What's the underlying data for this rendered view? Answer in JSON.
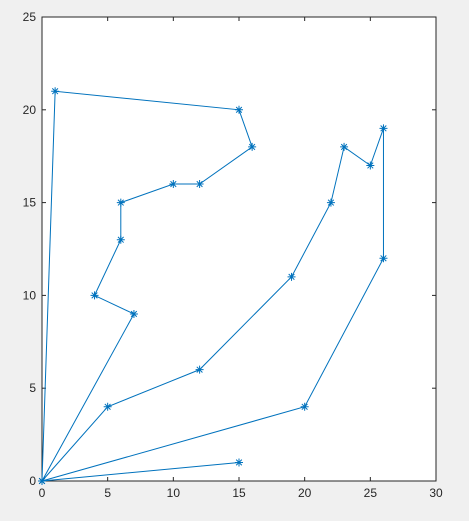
{
  "chart_data": {
    "type": "line",
    "x": [
      15,
      0,
      20,
      26,
      26,
      25,
      23,
      22,
      19,
      12,
      5,
      0,
      7,
      4,
      6,
      6,
      10,
      12,
      16,
      15,
      1,
      0
    ],
    "series": [
      {
        "color": "#0072bd",
        "marker": "*",
        "values": [
          1,
          0,
          4,
          12,
          19,
          17,
          18,
          15,
          11,
          6,
          4,
          0,
          9,
          10,
          13,
          15,
          16,
          16,
          18,
          20,
          21,
          0
        ]
      }
    ],
    "xlim": [
      0,
      30
    ],
    "xticks": [
      0,
      5,
      10,
      15,
      20,
      25,
      30
    ],
    "ylim": [
      0,
      25
    ],
    "yticks": [
      0,
      5,
      10,
      15,
      20,
      25
    ],
    "box": true
  }
}
